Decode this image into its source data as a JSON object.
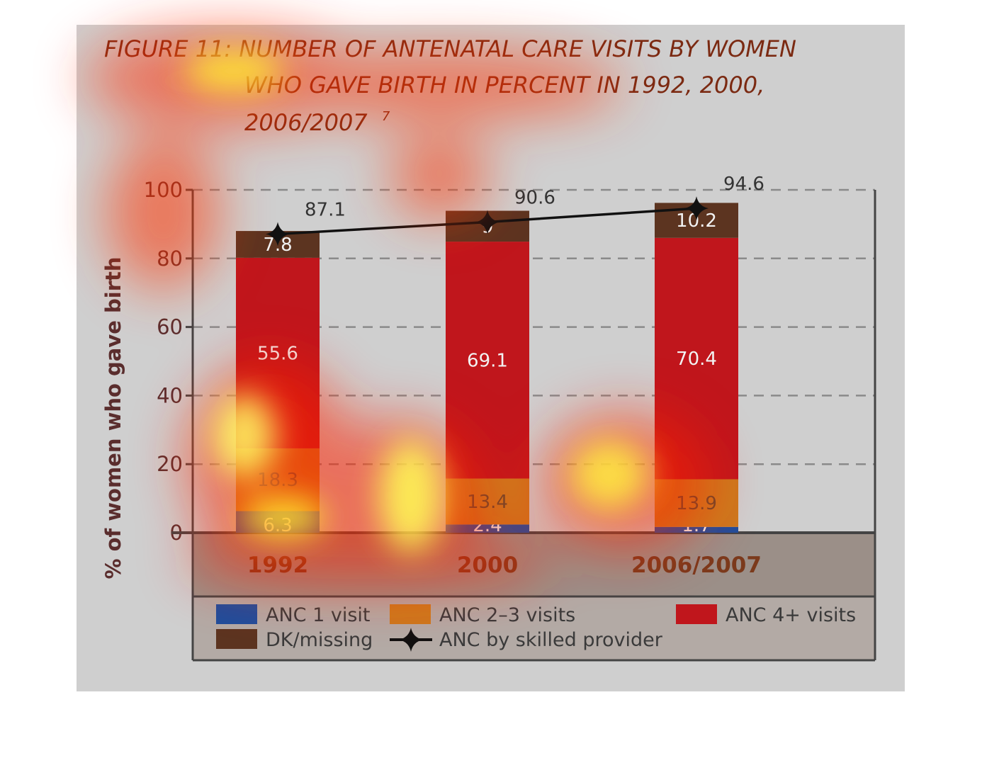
{
  "title": {
    "line1": "FIGURE 11: NUMBER OF ANTENATAL CARE VISITS  BY WOMEN",
    "line2": "WHO GAVE BIRTH IN PERCENT IN 1992, 2000,",
    "line3": "2006/2007",
    "footnote": "7"
  },
  "colors": {
    "anc1": "#1f4e9c",
    "anc23": "#cc7a1e",
    "anc4": "#c0161c",
    "dk": "#5c3420",
    "line": "#111111",
    "panel": "#cfcfcf",
    "xband": "#9b8f88"
  },
  "chart_data": {
    "type": "bar",
    "stacked": true,
    "categories": [
      "1992",
      "2000",
      "2006/2007"
    ],
    "ylabel": "% of women who gave birth",
    "ylim": [
      0,
      100
    ],
    "yticks": [
      "0",
      "20",
      "40",
      "60",
      "80",
      "100"
    ],
    "grid": true,
    "series": [
      {
        "name": "ANC 1 visit",
        "values": [
          6.3,
          2.4,
          1.7
        ],
        "labels": [
          "6.3",
          "2.4",
          "1.7"
        ]
      },
      {
        "name": "ANC 2-3 visits",
        "values": [
          18.3,
          13.4,
          13.9
        ],
        "labels": [
          "18.3",
          "13.4",
          "13.9"
        ]
      },
      {
        "name": "ANC 4+ visits",
        "values": [
          55.6,
          69.1,
          70.4
        ],
        "labels": [
          "55.6",
          "69.1",
          "70.4"
        ]
      },
      {
        "name": "DK/missing",
        "values": [
          7.8,
          9,
          10.2
        ],
        "labels": [
          "7.8",
          "9",
          "10.2"
        ]
      }
    ],
    "line_series": {
      "name": "ANC by skilled provider",
      "values": [
        87.1,
        90.6,
        94.6
      ],
      "labels": [
        "87.1",
        "90.6",
        "94.6"
      ]
    },
    "legend": {
      "placement": "bottom",
      "items": [
        {
          "label": "ANC 1 visit",
          "swatch": "anc1"
        },
        {
          "label": "ANC 2–3 visits",
          "swatch": "anc23"
        },
        {
          "label": "ANC 4+ visits",
          "swatch": "anc4"
        },
        {
          "label": "DK/missing",
          "swatch": "dk"
        },
        {
          "label": "ANC by skilled provider",
          "swatch": "line"
        }
      ]
    }
  }
}
